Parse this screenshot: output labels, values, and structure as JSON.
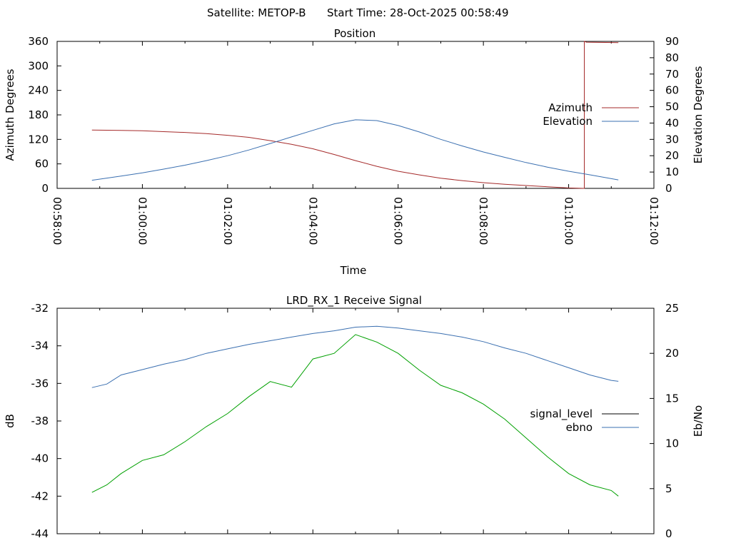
{
  "header": {
    "satellite_text": "Satellite: METOP-B",
    "start_time_text": "Start Time: 28-Oct-2025 00:58:49"
  },
  "chart_data": [
    {
      "type": "line",
      "title": "Position",
      "xlabel": "Time",
      "ylabel_left": "Azimuth Degrees",
      "ylabel_right": "Elevation Degrees",
      "x_unit": "time (HH:MM:SS, 28-Oct-2025)",
      "xlim": [
        "00:58:00",
        "01:12:00"
      ],
      "xticks": [
        "00:58:00",
        "01:00:00",
        "01:02:00",
        "01:04:00",
        "01:06:00",
        "01:08:00",
        "01:10:00",
        "01:12:00"
      ],
      "ylim_left": [
        0,
        360
      ],
      "yticks_left": [
        "0",
        "60",
        "120",
        "180",
        "240",
        "300",
        "360"
      ],
      "ylim_right": [
        0,
        90
      ],
      "yticks_right": [
        "0",
        "10",
        "20",
        "30",
        "40",
        "50",
        "60",
        "70",
        "80",
        "90"
      ],
      "legend_position": "right",
      "colors": {
        "azimuth": "#a52a2a",
        "elevation": "#3a6fb0"
      },
      "series": [
        {
          "name": "Azimuth",
          "axis": "left",
          "x": [
            "00:58:49",
            "00:59:30",
            "01:00:00",
            "01:00:30",
            "01:01:00",
            "01:01:30",
            "01:02:00",
            "01:02:30",
            "01:03:00",
            "01:03:30",
            "01:04:00",
            "01:04:30",
            "01:05:00",
            "01:05:30",
            "01:06:00",
            "01:06:30",
            "01:07:00",
            "01:07:30",
            "01:08:00",
            "01:08:30",
            "01:09:00",
            "01:09:30",
            "01:10:00",
            "01:10:22",
            "01:10:22",
            "01:10:25",
            "01:11:10"
          ],
          "values": [
            143,
            142,
            141,
            139,
            137,
            134,
            130,
            125,
            117,
            108,
            97,
            83,
            68,
            54,
            42,
            33,
            25,
            19,
            14,
            10,
            7,
            4,
            1,
            0,
            360,
            358,
            357
          ]
        },
        {
          "name": "Elevation",
          "axis": "right",
          "x": [
            "00:58:49",
            "00:59:30",
            "01:00:00",
            "01:00:30",
            "01:01:00",
            "01:01:30",
            "01:02:00",
            "01:02:30",
            "01:03:00",
            "01:03:30",
            "01:04:00",
            "01:04:30",
            "01:05:00",
            "01:05:30",
            "01:06:00",
            "01:06:30",
            "01:07:00",
            "01:07:30",
            "01:08:00",
            "01:08:30",
            "01:09:00",
            "01:09:30",
            "01:10:00",
            "01:10:30",
            "01:11:10"
          ],
          "values": [
            5,
            7.5,
            9.5,
            11.8,
            14.2,
            17,
            20,
            23.5,
            27.5,
            31.5,
            35.5,
            39.5,
            42,
            41.5,
            38.5,
            34.5,
            30,
            26,
            22.3,
            19,
            15.8,
            13,
            10.5,
            8.3,
            5.2
          ]
        }
      ]
    },
    {
      "type": "line",
      "title": "LRD_RX_1 Receive Signal",
      "xlabel": "",
      "ylabel_left": "dB",
      "ylabel_right": "Eb/No",
      "xlim": [
        "00:58:00",
        "01:12:00"
      ],
      "ylim_left": [
        -44,
        -32
      ],
      "yticks_left": [
        "-44",
        "-42",
        "-40",
        "-38",
        "-36",
        "-34",
        "-32"
      ],
      "ylim_right": [
        0,
        25
      ],
      "yticks_right": [
        "0",
        "5",
        "10",
        "15",
        "20",
        "25"
      ],
      "legend_position": "right",
      "colors": {
        "signal_level": "#000000",
        "ebno": "#3a6fb0",
        "signal_trace": "#00a000"
      },
      "series": [
        {
          "name": "signal_level",
          "axis": "left",
          "x": [
            "00:58:49",
            "00:59:10",
            "00:59:30",
            "01:00:00",
            "01:00:30",
            "01:01:00",
            "01:01:30",
            "01:02:00",
            "01:02:30",
            "01:03:00",
            "01:03:30",
            "01:04:00",
            "01:04:30",
            "01:05:00",
            "01:05:30",
            "01:06:00",
            "01:06:30",
            "01:07:00",
            "01:07:30",
            "01:08:00",
            "01:08:30",
            "01:09:00",
            "01:09:30",
            "01:10:00",
            "01:10:30",
            "01:11:00",
            "01:11:10"
          ],
          "values": [
            -41.8,
            -41.4,
            -40.8,
            -40.1,
            -39.8,
            -39.1,
            -38.3,
            -37.6,
            -36.7,
            -35.9,
            -36.2,
            -34.7,
            -34.4,
            -33.4,
            -33.8,
            -34.4,
            -35.3,
            -36.1,
            -36.5,
            -37.1,
            -37.9,
            -38.9,
            -39.9,
            -40.8,
            -41.4,
            -41.7,
            -42.0
          ]
        },
        {
          "name": "ebno",
          "axis": "right",
          "x": [
            "00:58:49",
            "00:59:10",
            "00:59:30",
            "01:00:00",
            "01:00:30",
            "01:01:00",
            "01:01:30",
            "01:02:00",
            "01:02:30",
            "01:03:00",
            "01:03:30",
            "01:04:00",
            "01:04:30",
            "01:05:00",
            "01:05:30",
            "01:06:00",
            "01:06:30",
            "01:07:00",
            "01:07:30",
            "01:08:00",
            "01:08:30",
            "01:09:00",
            "01:09:30",
            "01:10:00",
            "01:10:30",
            "01:11:00",
            "01:11:10"
          ],
          "values": [
            16.2,
            16.6,
            17.6,
            18.2,
            18.8,
            19.3,
            20.0,
            20.5,
            21.0,
            21.4,
            21.8,
            22.2,
            22.5,
            22.9,
            23.0,
            22.8,
            22.5,
            22.2,
            21.8,
            21.3,
            20.6,
            20.0,
            19.2,
            18.4,
            17.6,
            17.0,
            16.9
          ]
        }
      ]
    }
  ]
}
